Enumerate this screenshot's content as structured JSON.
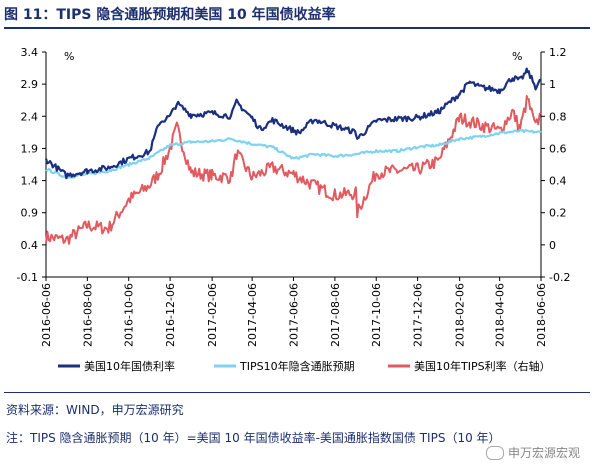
{
  "title": "图 11：TIPS 隐含通胀预期和美国 10 年国债收益率",
  "source": "资料来源：WIND，申万宏源研究",
  "note": "注：TIPS 隐含通胀预期（10 年）=美国 10 年国债收益率-美国通胀指数国债 TIPS（10 年）",
  "watermark": "申万宏源宏观",
  "colors": {
    "series1": "#1a2f7f",
    "series2": "#7fd3f0",
    "series3": "#e05a5f",
    "title": "#1c2f6e"
  },
  "chart_data": {
    "type": "line",
    "left_unit": "%",
    "right_unit": "%",
    "ylim_left": [
      -0.1,
      3.4
    ],
    "yticks_left": [
      "3.4",
      "2.9",
      "2.4",
      "1.9",
      "1.4",
      "0.9",
      "0.4",
      "-0.1"
    ],
    "ylim_right": [
      -0.2,
      1.2
    ],
    "yticks_right": [
      "1.2",
      "1",
      "0.8",
      "0.6",
      "0.4",
      "0.2",
      "0",
      "-0.2"
    ],
    "xlim": [
      "2016-06-06",
      "2018-06-06"
    ],
    "xticks": [
      "2016-06-06",
      "2016-08-06",
      "2016-10-06",
      "2016-12-06",
      "2017-02-06",
      "2017-04-06",
      "2017-06-06",
      "2017-08-06",
      "2017-10-06",
      "2017-12-06",
      "2018-02-06",
      "2018-04-06",
      "2018-06-06"
    ],
    "legend_position": "bottom",
    "series": [
      {
        "name": "美国10年国债利率",
        "axis": "left",
        "color": "#1a2f7f",
        "x": [
          "2016-06-06",
          "2016-07-06",
          "2016-08-06",
          "2016-09-06",
          "2016-10-06",
          "2016-11-06",
          "2016-11-20",
          "2016-12-06",
          "2016-12-16",
          "2017-01-06",
          "2017-02-06",
          "2017-03-06",
          "2017-03-14",
          "2017-04-06",
          "2017-04-18",
          "2017-05-06",
          "2017-06-06",
          "2017-06-14",
          "2017-07-06",
          "2017-08-06",
          "2017-09-06",
          "2017-09-08",
          "2017-10-06",
          "2017-11-06",
          "2017-12-06",
          "2018-01-06",
          "2018-02-06",
          "2018-02-21",
          "2018-03-06",
          "2018-04-06",
          "2018-04-25",
          "2018-05-06",
          "2018-05-17",
          "2018-05-29",
          "2018-06-06"
        ],
        "y": [
          1.73,
          1.48,
          1.55,
          1.6,
          1.74,
          1.85,
          2.3,
          2.4,
          2.6,
          2.42,
          2.45,
          2.4,
          2.62,
          2.37,
          2.2,
          2.34,
          2.18,
          2.14,
          2.35,
          2.25,
          2.15,
          2.05,
          2.33,
          2.36,
          2.38,
          2.47,
          2.75,
          2.93,
          2.86,
          2.8,
          3.0,
          2.96,
          3.11,
          2.86,
          2.97
        ]
      },
      {
        "name": "TIPS10年隐含通胀预期",
        "axis": "left",
        "color": "#7fd3f0",
        "x": [
          "2016-06-06",
          "2016-07-06",
          "2016-08-06",
          "2016-09-06",
          "2016-10-06",
          "2016-11-06",
          "2016-12-06",
          "2017-01-06",
          "2017-02-06",
          "2017-03-06",
          "2017-04-06",
          "2017-05-06",
          "2017-06-06",
          "2017-07-06",
          "2017-08-06",
          "2017-09-06",
          "2017-10-06",
          "2017-11-06",
          "2017-12-06",
          "2018-01-06",
          "2018-02-06",
          "2018-03-06",
          "2018-04-06",
          "2018-05-06",
          "2018-06-06"
        ],
        "y": [
          1.58,
          1.45,
          1.5,
          1.55,
          1.65,
          1.75,
          1.95,
          2.0,
          2.01,
          2.05,
          1.97,
          1.92,
          1.74,
          1.81,
          1.78,
          1.81,
          1.86,
          1.86,
          1.92,
          1.95,
          2.05,
          2.08,
          2.14,
          2.17,
          2.15
        ]
      },
      {
        "name": "美国10年TIPS利率（右轴）",
        "axis": "right",
        "color": "#e05a5f",
        "x": [
          "2016-06-06",
          "2016-07-06",
          "2016-08-06",
          "2016-09-06",
          "2016-10-06",
          "2016-11-06",
          "2016-11-20",
          "2016-12-06",
          "2016-12-16",
          "2017-01-06",
          "2017-02-06",
          "2017-03-06",
          "2017-03-14",
          "2017-04-06",
          "2017-05-06",
          "2017-06-06",
          "2017-07-06",
          "2017-08-06",
          "2017-09-06",
          "2017-09-08",
          "2017-10-06",
          "2017-11-06",
          "2017-12-06",
          "2018-01-06",
          "2018-02-06",
          "2018-03-06",
          "2018-04-06",
          "2018-04-25",
          "2018-05-06",
          "2018-05-17",
          "2018-05-29",
          "2018-06-06"
        ],
        "y": [
          0.05,
          0.03,
          0.12,
          0.1,
          0.28,
          0.37,
          0.45,
          0.6,
          0.73,
          0.45,
          0.43,
          0.42,
          0.57,
          0.42,
          0.48,
          0.44,
          0.37,
          0.31,
          0.32,
          0.2,
          0.45,
          0.46,
          0.47,
          0.52,
          0.79,
          0.75,
          0.71,
          0.83,
          0.72,
          0.91,
          0.73,
          0.82
        ]
      }
    ]
  }
}
